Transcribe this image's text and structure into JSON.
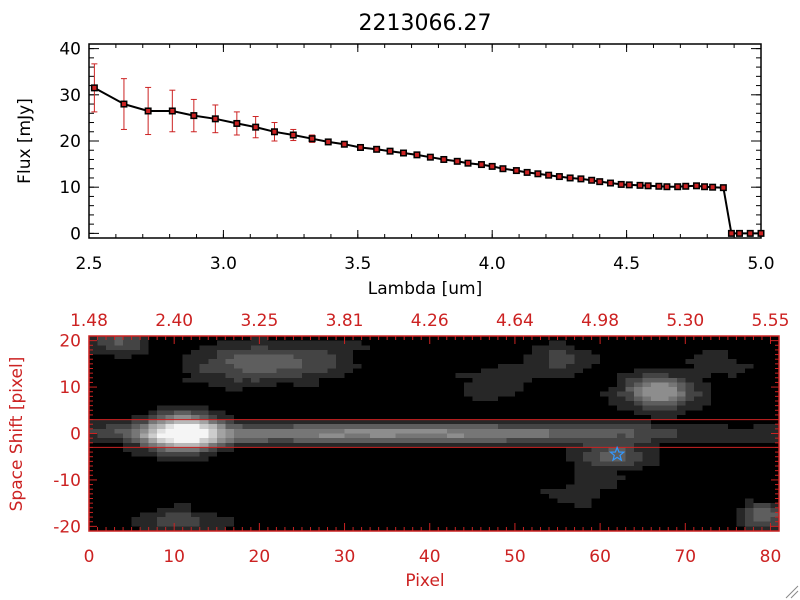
{
  "chart_data": [
    {
      "type": "line",
      "title": "2213066.27",
      "xlabel": "Lambda [um]",
      "ylabel": "Flux [mJy]",
      "xlim": [
        2.5,
        5.0
      ],
      "ylim": [
        -1,
        41
      ],
      "x_tick_labels": [
        "2.5",
        "3.0",
        "3.5",
        "4.0",
        "4.5",
        "5.0"
      ],
      "y_tick_labels": [
        "0",
        "10",
        "20",
        "30",
        "40"
      ],
      "series": [
        {
          "color": "#000000",
          "marker_color": "#cc2222",
          "errorbar_color": "#cc2222",
          "x": [
            2.52,
            2.63,
            2.72,
            2.81,
            2.89,
            2.97,
            3.05,
            3.12,
            3.19,
            3.26,
            3.33,
            3.39,
            3.45,
            3.51,
            3.57,
            3.62,
            3.67,
            3.72,
            3.77,
            3.82,
            3.87,
            3.91,
            3.96,
            4.0,
            4.04,
            4.09,
            4.13,
            4.17,
            4.21,
            4.25,
            4.29,
            4.33,
            4.37,
            4.4,
            4.44,
            4.48,
            4.51,
            4.55,
            4.58,
            4.62,
            4.65,
            4.69,
            4.72,
            4.76,
            4.79,
            4.82,
            4.86,
            4.89,
            4.92,
            4.96,
            5.0
          ],
          "y": [
            31.5,
            28,
            26.5,
            26.5,
            25.5,
            24.8,
            23.8,
            23,
            22,
            21.3,
            20.5,
            19.8,
            19.3,
            18.6,
            18.2,
            17.8,
            17.4,
            17,
            16.5,
            16,
            15.6,
            15.2,
            14.9,
            14.5,
            14,
            13.6,
            13.2,
            12.9,
            12.6,
            12.3,
            12,
            11.8,
            11.5,
            11.2,
            10.9,
            10.6,
            10.5,
            10.4,
            10.3,
            10.2,
            10.1,
            10.1,
            10.2,
            10.3,
            10.1,
            10,
            9.9,
            0,
            0,
            0,
            0
          ],
          "yerr": [
            5.2,
            5.5,
            5.1,
            4.5,
            3.5,
            3.0,
            2.5,
            2.3,
            2.0,
            1.2,
            0.8,
            0.5,
            0.4,
            0.3,
            0.3,
            0.3,
            0.3,
            0.3,
            0.3,
            0.3,
            0.3,
            0.3,
            0.3,
            0.3,
            0.3,
            0.3,
            0.3,
            0.3,
            0.3,
            0.3,
            0.3,
            0.3,
            0.3,
            0.3,
            0.3,
            0.3,
            0.3,
            0.3,
            0.3,
            0.3,
            0.3,
            0.3,
            0.3,
            0.3,
            0.3,
            0.3,
            0.3,
            0.3,
            0.3,
            0.3,
            0.3
          ]
        }
      ]
    },
    {
      "type": "heatmap",
      "xlabel": "Pixel",
      "ylabel": "Space Shift [pixel]",
      "xlim": [
        0,
        81
      ],
      "ylim": [
        -21,
        21
      ],
      "x_tick_labels": [
        "0",
        "10",
        "20",
        "30",
        "40",
        "50",
        "60",
        "70",
        "80"
      ],
      "y_tick_labels": [
        "-20",
        "-10",
        "0",
        "10",
        "20"
      ],
      "top_axis_label_values": [
        0,
        10,
        20,
        30,
        40,
        50,
        60,
        70,
        80
      ],
      "top_tick_labels": [
        "1.48",
        "2.40",
        "3.25",
        "3.81",
        "4.26",
        "4.64",
        "4.98",
        "5.30",
        "5.55"
      ],
      "colormap": "grayscale",
      "axis_color": "#cc2222",
      "aperture_lines_y": [
        3,
        -3
      ],
      "aperture_line_color": "#cc2222",
      "sources": [
        {
          "x": 11,
          "y": 0,
          "amplitude": 1.0,
          "sigma_x": 3,
          "sigma_y": 2.8
        },
        {
          "x": 35,
          "y": 0,
          "amplitude": 0.5,
          "sigma_x": 25,
          "sigma_y": 1.5
        },
        {
          "x": 67,
          "y": 9,
          "amplitude": 0.55,
          "sigma_x": 3,
          "sigma_y": 2.5
        },
        {
          "x": 19,
          "y": 15,
          "amplitude": 0.3,
          "sigma_x": 5,
          "sigma_y": 3
        },
        {
          "x": 27,
          "y": 16,
          "amplitude": 0.15,
          "sigma_x": 4,
          "sigma_y": 3
        },
        {
          "x": 3,
          "y": 20,
          "amplitude": 0.28,
          "sigma_x": 3,
          "sigma_y": 2
        },
        {
          "x": 55,
          "y": 16,
          "amplitude": 0.18,
          "sigma_x": 3,
          "sigma_y": 2.5
        },
        {
          "x": 47,
          "y": 10,
          "amplitude": 0.12,
          "sigma_x": 4,
          "sigma_y": 3
        },
        {
          "x": 79,
          "y": -18,
          "amplitude": 0.35,
          "sigma_x": 2,
          "sigma_y": 2
        },
        {
          "x": 11,
          "y": -19,
          "amplitude": 0.2,
          "sigma_x": 4,
          "sigma_y": 2
        },
        {
          "x": 62,
          "y": -5,
          "amplitude": 0.3,
          "sigma_x": 3,
          "sigma_y": 2
        },
        {
          "x": 74,
          "y": 15,
          "amplitude": 0.12,
          "sigma_x": 3,
          "sigma_y": 2
        },
        {
          "x": 58,
          "y": -12,
          "amplitude": 0.1,
          "sigma_x": 4,
          "sigma_y": 3
        }
      ],
      "marker": {
        "x": 62,
        "y": -4.5,
        "symbol": "star",
        "color": "#3399ff"
      }
    }
  ]
}
